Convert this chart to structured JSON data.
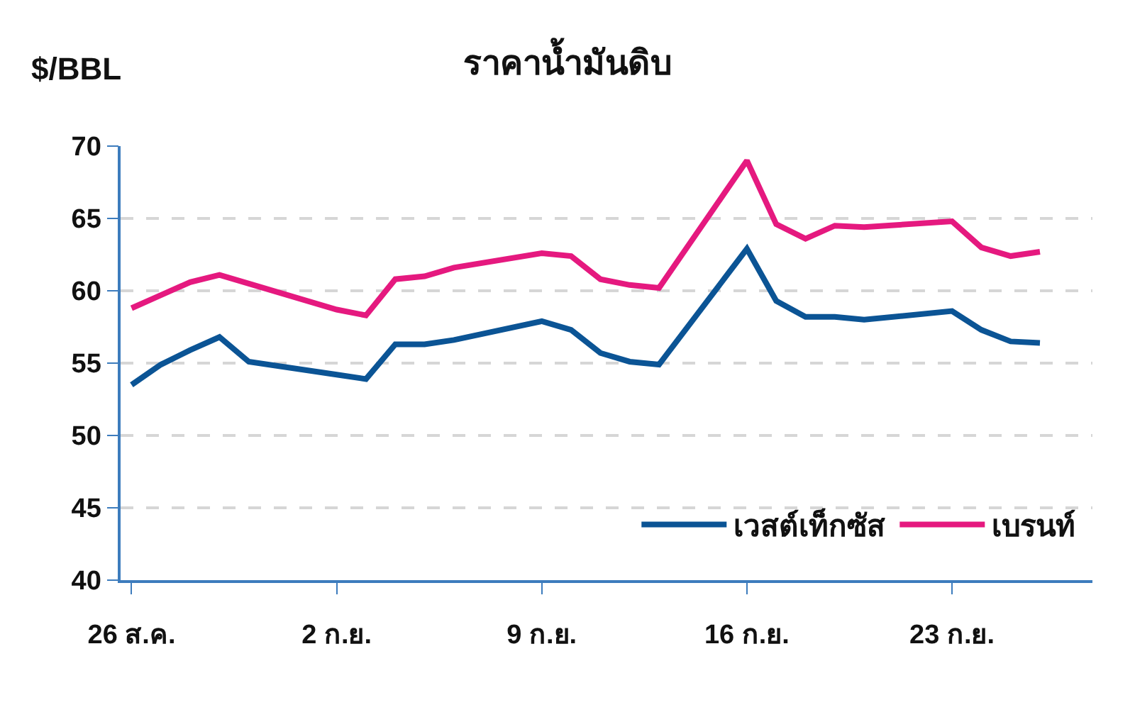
{
  "chart_data": {
    "type": "line",
    "title": "ราคาน้ำมันดิบ",
    "ylabel": "$/BBL",
    "x": [
      "--08-26",
      "--08-27",
      "--08-28",
      "--08-29",
      "--08-30",
      "--09-02",
      "--09-03",
      "--09-04",
      "--09-05",
      "--09-06",
      "--09-09",
      "--09-10",
      "--09-11",
      "--09-12",
      "--09-13",
      "--09-16",
      "--09-17",
      "--09-18",
      "--09-19",
      "--09-20",
      "--09-23",
      "--09-24",
      "--09-25",
      "--09-26"
    ],
    "series": [
      {
        "name": "เวสต์เท็กซัส",
        "color": "#0b5495",
        "values": [
          53.5,
          54.9,
          55.9,
          56.8,
          55.1,
          54.2,
          53.9,
          56.3,
          56.3,
          56.6,
          57.9,
          57.3,
          55.7,
          55.1,
          54.9,
          62.9,
          59.3,
          58.2,
          58.2,
          58.0,
          58.6,
          57.3,
          56.5,
          56.4
        ]
      },
      {
        "name": "เบรนท์",
        "color": "#e5197f",
        "values": [
          58.8,
          59.7,
          60.6,
          61.1,
          60.5,
          58.7,
          58.3,
          60.8,
          61.0,
          61.6,
          62.6,
          62.4,
          60.8,
          60.4,
          60.2,
          69.0,
          64.6,
          63.6,
          64.5,
          64.4,
          64.8,
          63.0,
          62.4,
          62.7
        ]
      }
    ],
    "xlim": [
      "--08-25T15:00",
      "--09-27T19:00"
    ],
    "xticks": [
      {
        "value": "--08-26",
        "label": "26 ส.ค."
      },
      {
        "value": "--09-02",
        "label": "2 ก.ย."
      },
      {
        "value": "--09-09",
        "label": "9 ก.ย."
      },
      {
        "value": "--09-16",
        "label": "16 ก.ย."
      },
      {
        "value": "--09-23",
        "label": "23 ก.ย."
      }
    ],
    "ylim": [
      40,
      70
    ],
    "yticks": [
      40,
      45,
      50,
      55,
      60,
      65,
      70
    ],
    "grid": "y",
    "legend": "bottom right",
    "line_style": "solid",
    "marker": "none"
  }
}
